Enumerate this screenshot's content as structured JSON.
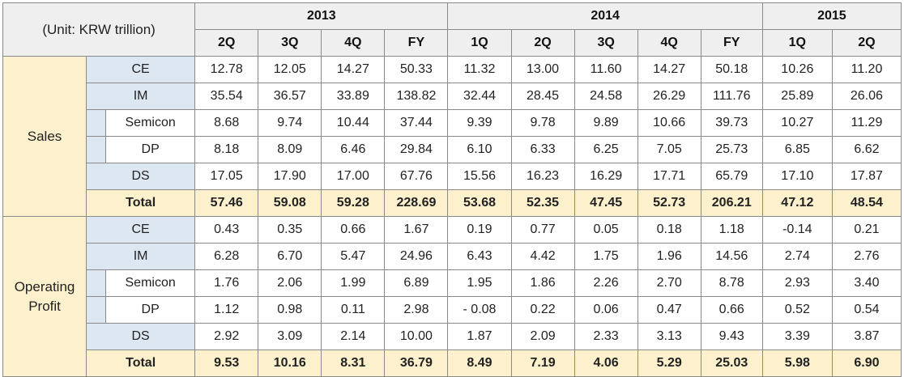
{
  "unit_label": "(Unit: KRW trillion)",
  "years": [
    {
      "label": "2013",
      "span": 4
    },
    {
      "label": "2014",
      "span": 5
    },
    {
      "label": "2015",
      "span": 2
    }
  ],
  "periods": [
    "2Q",
    "3Q",
    "4Q",
    "FY",
    "1Q",
    "2Q",
    "3Q",
    "4Q",
    "FY",
    "1Q",
    "2Q"
  ],
  "groups": [
    {
      "label": "Sales",
      "rows": [
        {
          "label": "CE",
          "indent": false,
          "values": [
            "12.78",
            "12.05",
            "14.27",
            "50.33",
            "11.32",
            "13.00",
            "11.60",
            "14.27",
            "50.18",
            "10.26",
            "11.20"
          ]
        },
        {
          "label": "IM",
          "indent": false,
          "values": [
            "35.54",
            "36.57",
            "33.89",
            "138.82",
            "32.44",
            "28.45",
            "24.58",
            "26.29",
            "111.76",
            "25.89",
            "26.06"
          ]
        },
        {
          "label": "Semicon",
          "indent": true,
          "values": [
            "8.68",
            "9.74",
            "10.44",
            "37.44",
            "9.39",
            "9.78",
            "9.89",
            "10.66",
            "39.73",
            "10.27",
            "11.29"
          ]
        },
        {
          "label": "DP",
          "indent": true,
          "values": [
            "8.18",
            "8.09",
            "6.46",
            "29.84",
            "6.10",
            "6.33",
            "6.25",
            "7.05",
            "25.73",
            "6.85",
            "6.62"
          ]
        },
        {
          "label": "DS",
          "indent": false,
          "values": [
            "17.05",
            "17.90",
            "17.00",
            "67.76",
            "15.56",
            "16.23",
            "16.29",
            "17.71",
            "65.79",
            "17.10",
            "17.87"
          ]
        }
      ],
      "total": {
        "label": "Total",
        "values": [
          "57.46",
          "59.08",
          "59.28",
          "228.69",
          "53.68",
          "52.35",
          "47.45",
          "52.73",
          "206.21",
          "47.12",
          "48.54"
        ]
      }
    },
    {
      "label": "Operating Profit",
      "rows": [
        {
          "label": "CE",
          "indent": false,
          "values": [
            "0.43",
            "0.35",
            "0.66",
            "1.67",
            "0.19",
            "0.77",
            "0.05",
            "0.18",
            "1.18",
            "-0.14",
            "0.21"
          ]
        },
        {
          "label": "IM",
          "indent": false,
          "values": [
            "6.28",
            "6.70",
            "5.47",
            "24.96",
            "6.43",
            "4.42",
            "1.75",
            "1.96",
            "14.56",
            "2.74",
            "2.76"
          ]
        },
        {
          "label": "Semicon",
          "indent": true,
          "values": [
            "1.76",
            "2.06",
            "1.99",
            "6.89",
            "1.95",
            "1.86",
            "2.26",
            "2.70",
            "8.78",
            "2.93",
            "3.40"
          ]
        },
        {
          "label": "DP",
          "indent": true,
          "values": [
            "1.12",
            "0.98",
            "0.11",
            "2.98",
            "- 0.08",
            "0.22",
            "0.06",
            "0.47",
            "0.66",
            "0.52",
            "0.54"
          ]
        },
        {
          "label": "DS",
          "indent": false,
          "values": [
            "2.92",
            "3.09",
            "2.14",
            "10.00",
            "1.87",
            "2.09",
            "2.33",
            "3.13",
            "9.43",
            "3.39",
            "3.87"
          ]
        }
      ],
      "total": {
        "label": "Total",
        "values": [
          "9.53",
          "10.16",
          "8.31",
          "36.79",
          "8.49",
          "7.19",
          "4.06",
          "5.29",
          "25.03",
          "5.98",
          "6.90"
        ]
      }
    }
  ],
  "colors": {
    "header_bg": "#efefef",
    "group_bg": "#fdf0cc",
    "segment_bg": "#dde7f1",
    "total_bg": "#fdf0cc",
    "border": "#8a8a8a"
  }
}
